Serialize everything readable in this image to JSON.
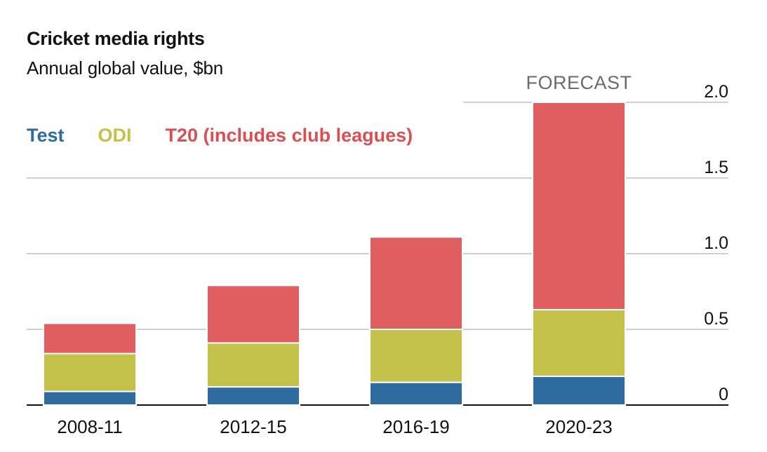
{
  "chart_data": {
    "type": "bar",
    "stacked": true,
    "title": "Cricket media rights",
    "subtitle": "Annual global value, $bn",
    "categories": [
      "2008-11",
      "2012-15",
      "2016-19",
      "2020-23"
    ],
    "series": [
      {
        "name": "Test",
        "color": "#2e6b9e",
        "values": [
          0.09,
          0.12,
          0.15,
          0.19
        ]
      },
      {
        "name": "ODI",
        "color": "#c3c14a",
        "values": [
          0.25,
          0.29,
          0.35,
          0.44
        ]
      },
      {
        "name": "T20 (includes club leagues)",
        "color": "#e05d60",
        "values": [
          0.2,
          0.38,
          0.61,
          1.37
        ]
      }
    ],
    "ylim": [
      0,
      2.0
    ],
    "yticks": [
      "0",
      "0.5",
      "1.0",
      "1.5",
      "2.0"
    ],
    "ytick_values": [
      0,
      0.5,
      1.0,
      1.5,
      2.0
    ],
    "axis_side": "right",
    "grid": true,
    "annotation": "FORECAST",
    "annotation_category": "2020-23"
  }
}
